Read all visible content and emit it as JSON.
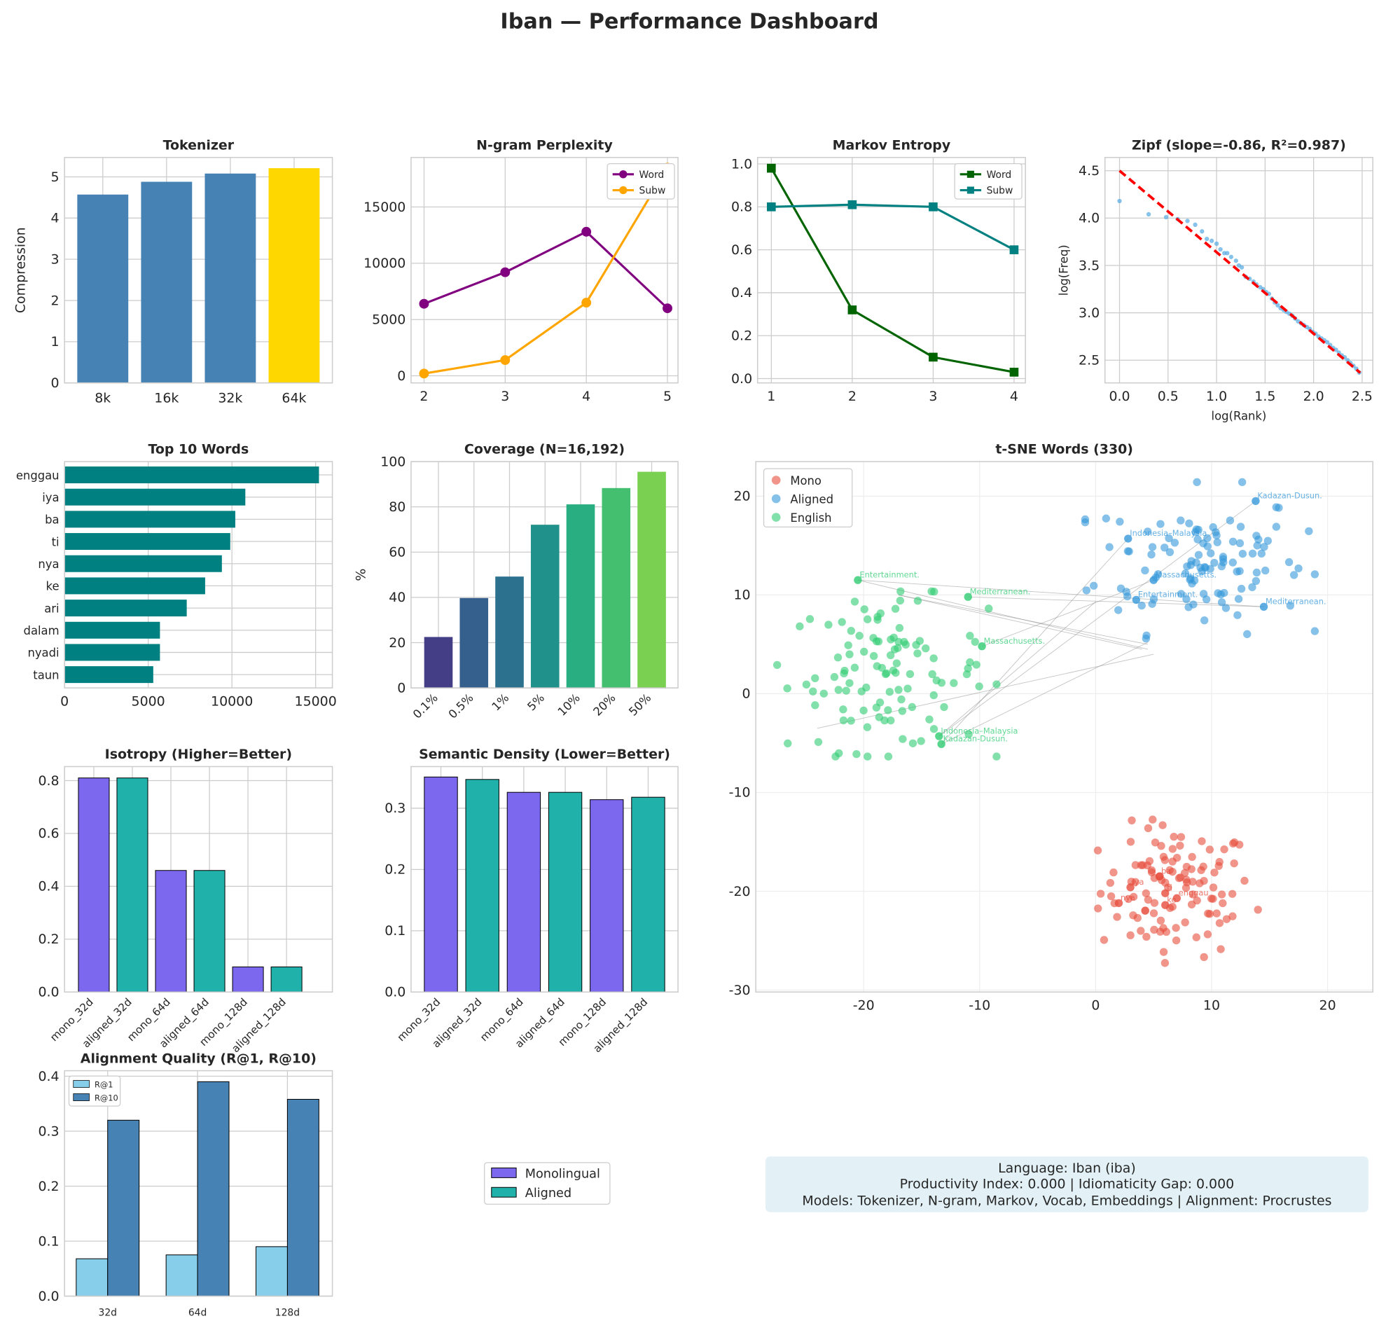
{
  "title": "Iban — Performance Dashboard",
  "chart_data": [
    {
      "id": "tokenizer",
      "type": "bar",
      "title": "Tokenizer",
      "ylabel": "Compression",
      "xlabel": "",
      "categories": [
        "8k",
        "16k",
        "32k",
        "64k"
      ],
      "values": [
        4.57,
        4.88,
        5.08,
        5.21
      ],
      "colors": [
        "#4682b4",
        "#4682b4",
        "#4682b4",
        "#ffd700"
      ],
      "ylim": [
        0,
        5.47
      ],
      "yticks": [
        0,
        1,
        2,
        3,
        4,
        5
      ],
      "grid": true
    },
    {
      "id": "ngram",
      "type": "line",
      "title": "N-gram Perplexity",
      "x": [
        2,
        3,
        4,
        5
      ],
      "series": [
        {
          "name": "Word",
          "values": [
            6400,
            9200,
            12800,
            6000
          ],
          "color": "#800080"
        },
        {
          "name": "Subw",
          "values": [
            200,
            1400,
            6500,
            18500
          ],
          "color": "#ffa500"
        }
      ],
      "xlim": [
        1.84,
        5.13
      ],
      "ylim": [
        -630,
        19400
      ],
      "xticks": [
        2,
        3,
        4,
        5
      ],
      "yticks": [
        0,
        5000,
        10000,
        15000
      ],
      "legend": "top-right",
      "grid": true
    },
    {
      "id": "markov",
      "type": "line",
      "title": "Markov Entropy",
      "x": [
        1,
        2,
        3,
        4
      ],
      "series": [
        {
          "name": "Word",
          "values": [
            0.98,
            0.32,
            0.1,
            0.03
          ],
          "color": "#006400"
        },
        {
          "name": "Subw",
          "values": [
            0.8,
            0.81,
            0.8,
            0.6
          ],
          "color": "#008080"
        }
      ],
      "xlim": [
        0.83,
        4.14
      ],
      "ylim": [
        -0.02,
        1.03
      ],
      "xticks": [
        1,
        2,
        3,
        4
      ],
      "yticks": [
        0,
        0.2,
        0.4,
        0.6,
        0.8,
        1.0
      ],
      "legend": "top-right",
      "grid": true
    },
    {
      "id": "zipf",
      "type": "scatter",
      "title": "Zipf (slope=-0.86, R²=0.987)",
      "xlabel": "log(Rank)",
      "ylabel": "log(Freq)",
      "points": [
        [
          0,
          4.18
        ],
        [
          0.3,
          4.04
        ],
        [
          0.48,
          4.01
        ],
        [
          0.6,
          3.99
        ],
        [
          0.7,
          3.97
        ],
        [
          0.78,
          3.93
        ],
        [
          0.85,
          3.86
        ],
        [
          0.9,
          3.78
        ],
        [
          0.95,
          3.76
        ],
        [
          1.0,
          3.73
        ],
        [
          1.04,
          3.67
        ],
        [
          1.08,
          3.63
        ],
        [
          1.11,
          3.63
        ],
        [
          1.15,
          3.59
        ],
        [
          1.2,
          3.55
        ],
        [
          1.23,
          3.5
        ],
        [
          1.26,
          3.48
        ],
        [
          1.3,
          3.38
        ],
        [
          1.34,
          3.36
        ],
        [
          1.38,
          3.33
        ],
        [
          1.41,
          3.3
        ],
        [
          1.45,
          3.27
        ],
        [
          1.48,
          3.25
        ],
        [
          1.51,
          3.22
        ],
        [
          1.54,
          3.2
        ],
        [
          1.57,
          3.15
        ],
        [
          1.6,
          3.11
        ],
        [
          1.63,
          3.08
        ],
        [
          1.66,
          3.05
        ],
        [
          1.69,
          3.03
        ],
        [
          1.72,
          3.01
        ],
        [
          1.75,
          2.99
        ],
        [
          1.78,
          2.97
        ],
        [
          1.81,
          2.94
        ],
        [
          1.84,
          2.91
        ],
        [
          1.87,
          2.89
        ],
        [
          1.9,
          2.87
        ],
        [
          1.93,
          2.85
        ],
        [
          1.96,
          2.83
        ],
        [
          1.99,
          2.8
        ],
        [
          2.02,
          2.78
        ],
        [
          2.05,
          2.75
        ],
        [
          2.08,
          2.73
        ],
        [
          2.11,
          2.71
        ],
        [
          2.14,
          2.69
        ],
        [
          2.17,
          2.66
        ],
        [
          2.2,
          2.63
        ],
        [
          2.23,
          2.61
        ],
        [
          2.26,
          2.58
        ],
        [
          2.29,
          2.55
        ],
        [
          2.32,
          2.53
        ],
        [
          2.35,
          2.5
        ],
        [
          2.38,
          2.47
        ],
        [
          2.41,
          2.44
        ],
        [
          2.44,
          2.41
        ],
        [
          2.47,
          2.37
        ]
      ],
      "fit": {
        "slope": -0.86,
        "intercept": 4.5,
        "x": [
          0,
          2.48
        ],
        "color": "#ff0000"
      },
      "color": "#5dade2",
      "xlim": [
        -0.15,
        2.61
      ],
      "ylim": [
        2.26,
        4.64
      ],
      "xticks": [
        0,
        0.5,
        1.0,
        1.5,
        2.0,
        2.5
      ],
      "yticks": [
        2.5,
        3.0,
        3.5,
        4.0,
        4.5
      ],
      "grid": true
    },
    {
      "id": "top10",
      "type": "barh",
      "title": "Top 10 Words",
      "categories": [
        "enggau",
        "iya",
        "ba",
        "ti",
        "nya",
        "ke",
        "ari",
        "dalam",
        "nyadi",
        "taun"
      ],
      "values": [
        15200,
        10800,
        10200,
        9900,
        9400,
        8400,
        7300,
        5700,
        5700,
        5300
      ],
      "color": "#008080",
      "xlim": [
        0,
        16000
      ],
      "xticks": [
        0,
        5000,
        10000,
        15000
      ],
      "grid": true
    },
    {
      "id": "coverage",
      "type": "bar",
      "title": "Coverage (N=16,192)",
      "ylabel": "%",
      "categories": [
        "0.1%",
        "0.5%",
        "1%",
        "5%",
        "10%",
        "20%",
        "50%"
      ],
      "values": [
        22.5,
        39.7,
        49.2,
        72.1,
        81.1,
        88.3,
        95.5
      ],
      "colors": [
        "#433e85",
        "#355f8d",
        "#2c728e",
        "#21918c",
        "#28ae80",
        "#44bf70",
        "#7ad151"
      ],
      "ylim": [
        0,
        100
      ],
      "yticks": [
        0,
        20,
        40,
        60,
        80,
        100
      ],
      "grid": true
    },
    {
      "id": "isotropy",
      "type": "bar",
      "title": "Isotropy (Higher=Better)",
      "categories": [
        "mono_32d",
        "aligned_32d",
        "mono_64d",
        "aligned_64d",
        "mono_128d",
        "aligned_128d"
      ],
      "values": [
        0.81,
        0.81,
        0.46,
        0.46,
        0.095,
        0.095
      ],
      "colors": [
        "#7b68ee",
        "#20b2aa",
        "#7b68ee",
        "#20b2aa",
        "#7b68ee",
        "#20b2aa"
      ],
      "ylim": [
        0,
        0.853
      ],
      "yticks": [
        0,
        0.2,
        0.4,
        0.6,
        0.8
      ],
      "grid": true
    },
    {
      "id": "density",
      "type": "bar",
      "title": "Semantic Density (Lower=Better)",
      "categories": [
        "mono_32d",
        "aligned_32d",
        "mono_64d",
        "aligned_64d",
        "mono_128d",
        "aligned_128d"
      ],
      "values": [
        0.351,
        0.347,
        0.326,
        0.326,
        0.314,
        0.318
      ],
      "colors": [
        "#7b68ee",
        "#20b2aa",
        "#7b68ee",
        "#20b2aa",
        "#7b68ee",
        "#20b2aa"
      ],
      "ylim": [
        0,
        0.368
      ],
      "yticks": [
        0,
        0.1,
        0.2,
        0.3
      ],
      "grid": true
    },
    {
      "id": "alignment",
      "type": "grouped-bar",
      "title": "Alignment Quality (R@1, R@10)",
      "categories": [
        "32d",
        "64d",
        "128d"
      ],
      "series": [
        {
          "name": "R@1",
          "values": [
            0.068,
            0.075,
            0.09
          ],
          "color": "#87ceeb"
        },
        {
          "name": "R@10",
          "values": [
            0.32,
            0.39,
            0.358
          ],
          "color": "#4682b4"
        }
      ],
      "ylim": [
        0,
        0.41
      ],
      "yticks": [
        0,
        0.1,
        0.2,
        0.3,
        0.4
      ],
      "legend": "top-left",
      "grid": true
    },
    {
      "id": "tsne",
      "type": "scatter",
      "title": "t-SNE Words (330)",
      "series": [
        {
          "name": "Mono",
          "color": "#e74c3c",
          "center": [
            7,
            -20
          ],
          "spread": [
            3.3,
            3.3
          ],
          "n": 110
        },
        {
          "name": "Aligned",
          "color": "#3498db",
          "center": [
            9,
            13.5
          ],
          "spread": [
            4.5,
            3.6
          ],
          "n": 110
        },
        {
          "name": "English",
          "color": "#2ecc71",
          "center": [
            -18,
            2
          ],
          "spread": [
            4.3,
            3.8
          ],
          "n": 110
        }
      ],
      "annotations": [
        {
          "text": "Entertainment.",
          "x": -20.5,
          "y": 11.5,
          "series": "English"
        },
        {
          "text": "Mediterranean.",
          "x": -11,
          "y": 9.8,
          "series": "English"
        },
        {
          "text": "Massachusetts.",
          "x": -9.8,
          "y": 4.8,
          "series": "English"
        },
        {
          "text": "Indonesia–Malaysia",
          "x": -13.5,
          "y": -4.3,
          "series": "English"
        },
        {
          "text": "Kadazan-Dusun.",
          "x": -13.3,
          "y": -5.1,
          "series": "English"
        },
        {
          "text": "Kadazan-Dusun.",
          "x": 13.8,
          "y": 19.5,
          "series": "Aligned"
        },
        {
          "text": "Indonesia–Malaysia",
          "x": 2.8,
          "y": 15.7,
          "series": "Aligned"
        },
        {
          "text": "Massachusetts.",
          "x": 5,
          "y": 11.5,
          "series": "Aligned"
        },
        {
          "text": "Entertainment.",
          "x": 3.5,
          "y": 9.5,
          "series": "Aligned"
        },
        {
          "text": "Mediterranean.",
          "x": 14.5,
          "y": 8.8,
          "series": "Aligned"
        },
        {
          "text": "ba",
          "x": 5.5,
          "y": -18.5,
          "series": "Mono"
        },
        {
          "text": "iya",
          "x": 3,
          "y": -19.6,
          "series": "Mono"
        },
        {
          "text": "ti",
          "x": 6,
          "y": -20.2,
          "series": "Mono"
        },
        {
          "text": "enggau",
          "x": 7,
          "y": -20.7,
          "series": "Mono"
        },
        {
          "text": "nya",
          "x": 2,
          "y": -21.2,
          "series": "Mono"
        },
        {
          "text": "ke",
          "x": 6,
          "y": -21.4,
          "series": "Mono"
        }
      ],
      "links": [
        [
          [
            -20.5,
            11.5
          ],
          [
            4.5,
            4.5
          ]
        ],
        [
          [
            -20.5,
            11.5
          ],
          [
            14.5,
            8.8
          ]
        ],
        [
          [
            -17,
            10
          ],
          [
            4.5,
            5
          ]
        ],
        [
          [
            -17,
            10
          ],
          [
            4,
            4.5
          ]
        ],
        [
          [
            -11,
            9.8
          ],
          [
            14.5,
            8.8
          ]
        ],
        [
          [
            -9.8,
            4.8
          ],
          [
            5,
            11.5
          ]
        ],
        [
          [
            -13.5,
            -4.3
          ],
          [
            13.8,
            19.5
          ]
        ],
        [
          [
            -13.3,
            -5.1
          ],
          [
            2.8,
            15.7
          ]
        ],
        [
          [
            -13.3,
            -5.1
          ],
          [
            4.5,
            5.2
          ]
        ],
        [
          [
            -24,
            -3.5
          ],
          [
            5,
            4
          ]
        ],
        [
          [
            -13.5,
            -4.3
          ],
          [
            0,
            9.3
          ]
        ]
      ],
      "xlim": [
        -29.3,
        23.9
      ],
      "ylim": [
        -30.2,
        23.5
      ],
      "xticks": [
        -20,
        -10,
        0,
        10,
        20
      ],
      "yticks": [
        -30,
        -20,
        -10,
        0,
        10,
        20
      ],
      "legend": "top-left",
      "grid": true
    }
  ],
  "legend_bottom": {
    "items": [
      {
        "label": "Monolingual",
        "color": "#7b68ee"
      },
      {
        "label": "Aligned",
        "color": "#20b2aa"
      }
    ]
  },
  "info_box": {
    "line1": "Language: Iban (iba)",
    "line2": "Productivity Index: 0.000  |  Idiomaticity Gap: 0.000",
    "line3": "Models: Tokenizer, N-gram, Markov, Vocab, Embeddings  |  Alignment: Procrustes",
    "bg": "#e3f1f6"
  }
}
